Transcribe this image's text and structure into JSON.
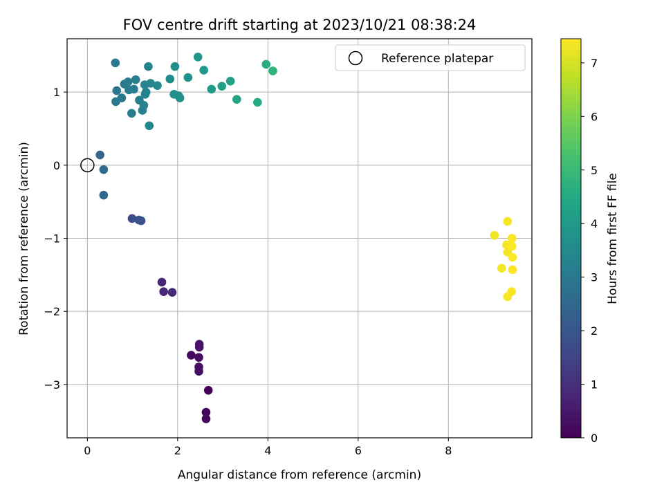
{
  "chart_data": {
    "type": "scatter",
    "title": "FOV centre drift starting at 2023/10/21 08:38:24",
    "xlabel": "Angular distance from reference (arcmin)",
    "ylabel": "Rotation from reference (arcmin)",
    "xlim": [
      -0.45,
      9.85
    ],
    "ylim": [
      -3.73,
      1.73
    ],
    "xticks": [
      0,
      2,
      4,
      6,
      8
    ],
    "yticks": [
      -3,
      -2,
      -1,
      0,
      1
    ],
    "grid": true,
    "legend": {
      "label": "Reference platepar",
      "placement": "top-right"
    },
    "reference_point": {
      "x": 0,
      "y": 0
    },
    "colorbar": {
      "label": "Hours from first FF file",
      "colormap": "viridis",
      "range": [
        0,
        7.45
      ],
      "ticks": [
        0,
        1,
        2,
        3,
        4,
        5,
        6,
        7
      ],
      "tick_labels": [
        "0",
        "1",
        "2",
        "3",
        "4",
        "5",
        "6",
        "7"
      ]
    },
    "points": [
      {
        "x": 2.68,
        "y": -3.08,
        "c": 0.05
      },
      {
        "x": 2.63,
        "y": -3.38,
        "c": 0.08
      },
      {
        "x": 2.63,
        "y": -3.47,
        "c": 0.12
      },
      {
        "x": 2.3,
        "y": -2.6,
        "c": 0.2
      },
      {
        "x": 2.47,
        "y": -2.63,
        "c": 0.25
      },
      {
        "x": 2.47,
        "y": -2.76,
        "c": 0.3
      },
      {
        "x": 2.47,
        "y": -2.82,
        "c": 0.33
      },
      {
        "x": 2.48,
        "y": -2.45,
        "c": 0.38
      },
      {
        "x": 2.48,
        "y": -2.49,
        "c": 0.42
      },
      {
        "x": 1.65,
        "y": -1.6,
        "c": 0.8
      },
      {
        "x": 1.69,
        "y": -1.73,
        "c": 0.85
      },
      {
        "x": 1.88,
        "y": -1.74,
        "c": 0.9
      },
      {
        "x": 0.99,
        "y": -0.73,
        "c": 1.8
      },
      {
        "x": 1.14,
        "y": -0.75,
        "c": 1.85
      },
      {
        "x": 1.19,
        "y": -0.76,
        "c": 1.9
      },
      {
        "x": 0.36,
        "y": -0.41,
        "c": 2.5
      },
      {
        "x": 0.36,
        "y": -0.06,
        "c": 2.55
      },
      {
        "x": 0.28,
        "y": 0.14,
        "c": 2.45
      },
      {
        "x": 0.62,
        "y": 1.4,
        "c": 3.0
      },
      {
        "x": 0.65,
        "y": 1.02,
        "c": 2.95
      },
      {
        "x": 0.63,
        "y": 0.87,
        "c": 2.98
      },
      {
        "x": 0.76,
        "y": 0.92,
        "c": 3.02
      },
      {
        "x": 0.82,
        "y": 1.11,
        "c": 3.05
      },
      {
        "x": 0.9,
        "y": 1.14,
        "c": 3.08
      },
      {
        "x": 0.92,
        "y": 1.03,
        "c": 3.1
      },
      {
        "x": 0.98,
        "y": 0.71,
        "c": 3.12
      },
      {
        "x": 1.03,
        "y": 1.04,
        "c": 3.15
      },
      {
        "x": 1.07,
        "y": 1.17,
        "c": 3.18
      },
      {
        "x": 1.15,
        "y": 0.89,
        "c": 3.2
      },
      {
        "x": 1.22,
        "y": 0.75,
        "c": 3.22
      },
      {
        "x": 1.25,
        "y": 0.82,
        "c": 3.25
      },
      {
        "x": 1.28,
        "y": 0.97,
        "c": 3.28
      },
      {
        "x": 1.27,
        "y": 1.1,
        "c": 3.3
      },
      {
        "x": 1.3,
        "y": 1.0,
        "c": 3.32
      },
      {
        "x": 1.35,
        "y": 1.35,
        "c": 3.35
      },
      {
        "x": 1.37,
        "y": 0.54,
        "c": 3.38
      },
      {
        "x": 1.4,
        "y": 1.12,
        "c": 3.4
      },
      {
        "x": 1.55,
        "y": 1.09,
        "c": 3.45
      },
      {
        "x": 1.83,
        "y": 1.18,
        "c": 3.6
      },
      {
        "x": 1.92,
        "y": 0.97,
        "c": 3.62
      },
      {
        "x": 1.94,
        "y": 1.35,
        "c": 3.65
      },
      {
        "x": 2.02,
        "y": 0.95,
        "c": 3.7
      },
      {
        "x": 2.05,
        "y": 0.92,
        "c": 3.72
      },
      {
        "x": 2.23,
        "y": 1.2,
        "c": 3.8
      },
      {
        "x": 2.45,
        "y": 1.48,
        "c": 3.9
      },
      {
        "x": 2.58,
        "y": 1.3,
        "c": 3.95
      },
      {
        "x": 2.75,
        "y": 1.04,
        "c": 4.05
      },
      {
        "x": 2.98,
        "y": 1.08,
        "c": 4.15
      },
      {
        "x": 3.17,
        "y": 1.15,
        "c": 4.25
      },
      {
        "x": 3.31,
        "y": 0.9,
        "c": 4.35
      },
      {
        "x": 3.77,
        "y": 0.86,
        "c": 4.55
      },
      {
        "x": 3.96,
        "y": 1.38,
        "c": 4.7
      },
      {
        "x": 4.11,
        "y": 1.29,
        "c": 4.8
      },
      {
        "x": 9.02,
        "y": -0.96,
        "c": 7.3
      },
      {
        "x": 9.18,
        "y": -1.41,
        "c": 7.32
      },
      {
        "x": 9.29,
        "y": -1.09,
        "c": 7.34
      },
      {
        "x": 9.31,
        "y": -0.77,
        "c": 7.35
      },
      {
        "x": 9.31,
        "y": -1.19,
        "c": 7.36
      },
      {
        "x": 9.31,
        "y": -1.8,
        "c": 7.37
      },
      {
        "x": 9.37,
        "y": -1.12,
        "c": 7.38
      },
      {
        "x": 9.4,
        "y": -1.73,
        "c": 7.39
      },
      {
        "x": 9.41,
        "y": -1.0,
        "c": 7.4
      },
      {
        "x": 9.41,
        "y": -1.11,
        "c": 7.41
      },
      {
        "x": 9.42,
        "y": -1.26,
        "c": 7.42
      },
      {
        "x": 9.42,
        "y": -1.43,
        "c": 7.43
      }
    ]
  }
}
